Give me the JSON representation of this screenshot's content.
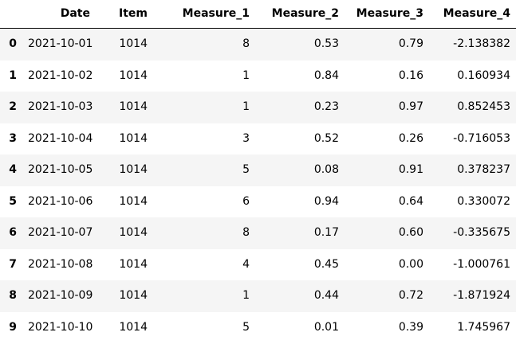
{
  "page": {
    "background_color": "#ffffff",
    "text_color": "#000000",
    "stripe_color": "#f5f5f5",
    "header_border_color": "#000000"
  },
  "chart_data": {
    "type": "table",
    "title": "",
    "index_header": "",
    "columns": [
      "Date",
      "Item",
      "Measure_1",
      "Measure_2",
      "Measure_3",
      "Measure_4"
    ],
    "index": [
      "0",
      "1",
      "2",
      "3",
      "4",
      "5",
      "6",
      "7",
      "8",
      "9"
    ],
    "rows": [
      [
        "2021-10-01",
        "1014",
        "8",
        "0.53",
        "0.79",
        "-2.138382"
      ],
      [
        "2021-10-02",
        "1014",
        "1",
        "0.84",
        "0.16",
        "0.160934"
      ],
      [
        "2021-10-03",
        "1014",
        "1",
        "0.23",
        "0.97",
        "0.852453"
      ],
      [
        "2021-10-04",
        "1014",
        "3",
        "0.52",
        "0.26",
        "-0.716053"
      ],
      [
        "2021-10-05",
        "1014",
        "5",
        "0.08",
        "0.91",
        "0.378237"
      ],
      [
        "2021-10-06",
        "1014",
        "6",
        "0.94",
        "0.64",
        "0.330072"
      ],
      [
        "2021-10-07",
        "1014",
        "8",
        "0.17",
        "0.60",
        "-0.335675"
      ],
      [
        "2021-10-08",
        "1014",
        "4",
        "0.45",
        "0.00",
        "-1.000761"
      ],
      [
        "2021-10-09",
        "1014",
        "1",
        "0.44",
        "0.72",
        "-1.871924"
      ],
      [
        "2021-10-10",
        "1014",
        "5",
        "0.01",
        "0.39",
        "1.745967"
      ]
    ],
    "layout": {
      "alignment": "right",
      "striped_rows": "odd",
      "grid": "off",
      "legend": "none"
    }
  }
}
